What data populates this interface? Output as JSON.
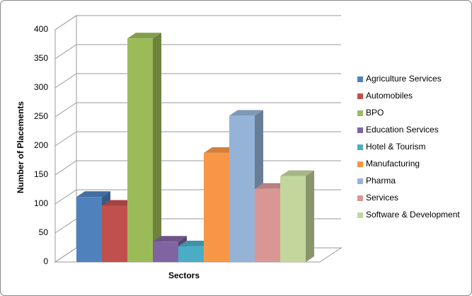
{
  "chart_data": {
    "type": "bar3d",
    "y_label": "Number of Placements",
    "x_label": "Sectors",
    "categories": [
      null
    ],
    "series": [
      {
        "name": "Agriculture Services",
        "color": "#4f81bd",
        "values": [
          112
        ]
      },
      {
        "name": "Automobiles",
        "color": "#c0504d",
        "values": [
          97
        ]
      },
      {
        "name": "BPO",
        "color": "#9bbb59",
        "values": [
          385
        ]
      },
      {
        "name": "Education Services",
        "color": "#8064a2",
        "values": [
          35
        ]
      },
      {
        "name": "Hotel & Tourism",
        "color": "#4bacc6",
        "values": [
          27
        ]
      },
      {
        "name": "Manufacturing",
        "color": "#f79646",
        "values": [
          188
        ]
      },
      {
        "name": "Pharma",
        "color": "#95b3d7",
        "values": [
          252
        ]
      },
      {
        "name": "Services",
        "color": "#d99694",
        "values": [
          126
        ]
      },
      {
        "name": "Software & Development",
        "color": "#c3d69b",
        "values": [
          148
        ]
      }
    ],
    "ylim": [
      0,
      400
    ],
    "yticks": [
      0,
      50,
      100,
      150,
      200,
      250,
      300,
      350,
      400
    ],
    "grid": true
  }
}
